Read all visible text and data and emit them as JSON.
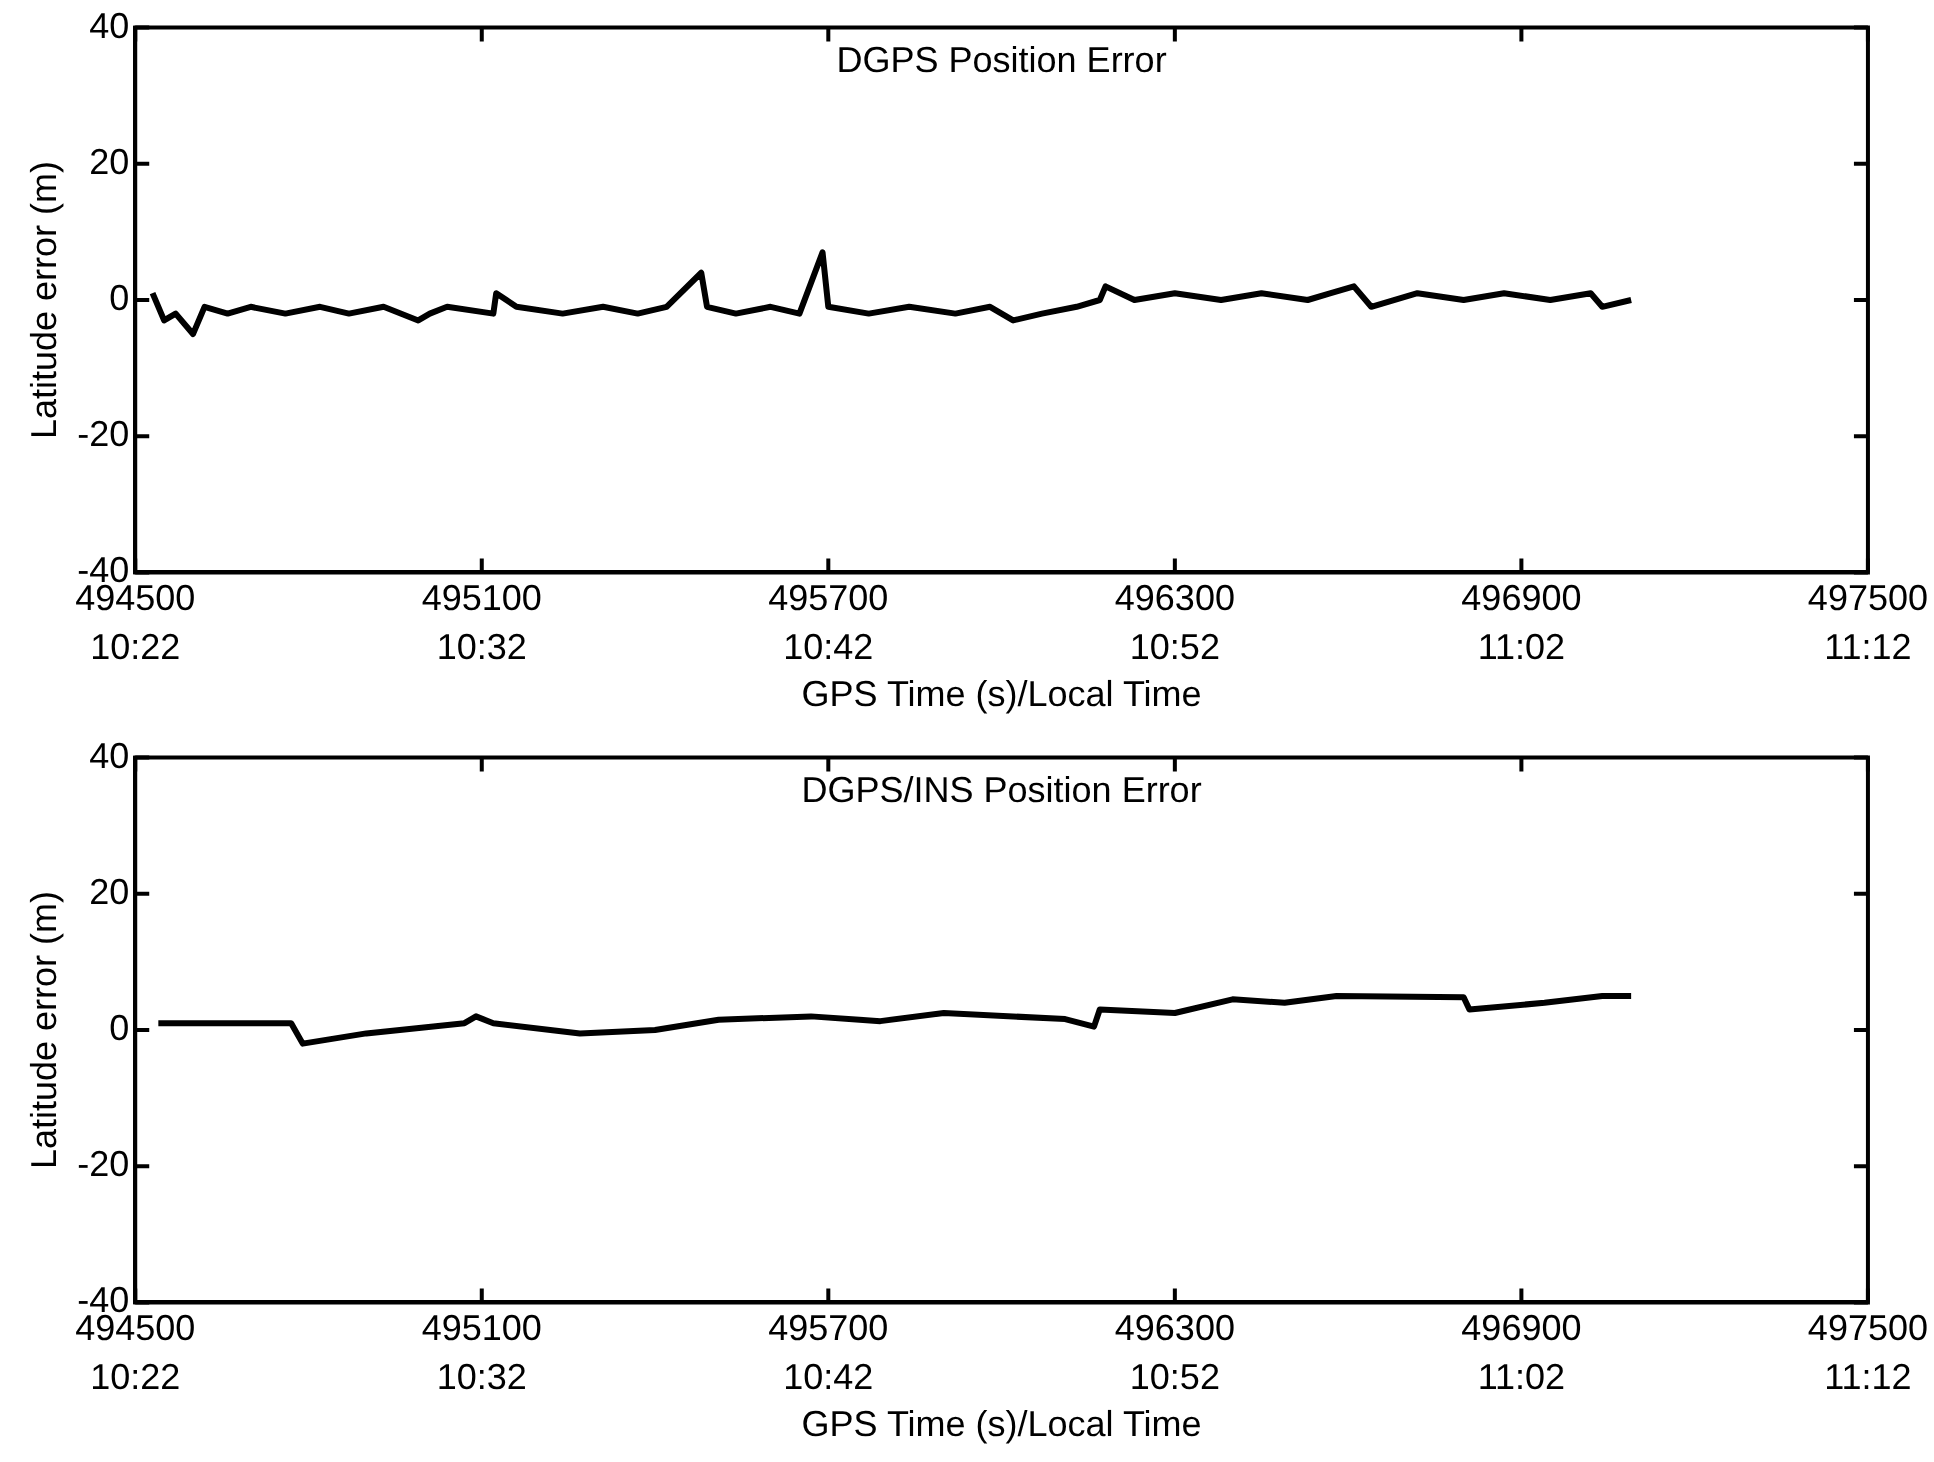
{
  "chart_data": [
    {
      "type": "line",
      "title": "DGPS Position Error",
      "xlabel": "GPS Time (s)/Local Time",
      "ylabel": "Latitude error (m)",
      "xlim": [
        494500,
        497500
      ],
      "ylim": [
        -40,
        40
      ],
      "yticks": [
        -40,
        -20,
        0,
        20,
        40
      ],
      "xticks": [
        494500,
        495100,
        495700,
        496300,
        496900,
        497500
      ],
      "x2lim": [
        10.36667,
        11.2
      ],
      "x2ticks": [
        {
          "value": 10.36667,
          "label": "10:22"
        },
        {
          "value": 10.53333,
          "label": "10:32"
        },
        {
          "value": 10.7,
          "label": "10:42"
        },
        {
          "value": 10.86667,
          "label": "10:52"
        },
        {
          "value": 11.03333,
          "label": "11:02"
        },
        {
          "value": 11.2,
          "label": "11:12"
        }
      ],
      "grid": false,
      "legend": false,
      "marker": "none",
      "line_style": "solid",
      "series": [
        {
          "color": "#000000",
          "x": [
            494530,
            494550,
            494570,
            494600,
            494620,
            494660,
            494700,
            494760,
            494820,
            494870,
            494930,
            494990,
            495010,
            495040,
            495120,
            495125,
            495160,
            495240,
            495310,
            495370,
            495420,
            495480,
            495490,
            495540,
            495600,
            495650,
            495690,
            495700,
            495770,
            495840,
            495920,
            495980,
            496020,
            496070,
            496130,
            496170,
            496180,
            496230,
            496300,
            496380,
            496450,
            496530,
            496570,
            496610,
            496640,
            496720,
            496800,
            496870,
            496950,
            497020,
            497040,
            497090
          ],
          "values": [
            1,
            -3,
            -2,
            -5,
            -1,
            -2,
            -1,
            -2,
            -1,
            -2,
            -1,
            -3,
            -2,
            -1,
            -2,
            1,
            -1,
            -2,
            -1,
            -2,
            -1,
            4,
            -1,
            -2,
            -1,
            -2,
            7,
            -1,
            -2,
            -1,
            -2,
            -1,
            -3,
            -2,
            -1,
            0,
            2,
            0,
            1,
            0,
            1,
            0,
            1,
            2,
            -1,
            1,
            0,
            1,
            0,
            1,
            -1,
            0
          ]
        }
      ]
    },
    {
      "type": "line",
      "title": "DGPS/INS Position Error",
      "xlabel": "GPS Time (s)/Local Time",
      "ylabel": "Latitude error (m)",
      "xlim": [
        494500,
        497500
      ],
      "ylim": [
        -40,
        40
      ],
      "yticks": [
        -40,
        -20,
        0,
        20,
        40
      ],
      "xticks": [
        494500,
        495100,
        495700,
        496300,
        496900,
        497500
      ],
      "x2lim": [
        10.36667,
        11.2
      ],
      "x2ticks": [
        {
          "value": 10.36667,
          "label": "10:22"
        },
        {
          "value": 10.53333,
          "label": "10:32"
        },
        {
          "value": 10.7,
          "label": "10:42"
        },
        {
          "value": 10.86667,
          "label": "10:52"
        },
        {
          "value": 11.03333,
          "label": "11:02"
        },
        {
          "value": 11.2,
          "label": "11:12"
        }
      ],
      "grid": false,
      "legend": false,
      "marker": "none",
      "line_style": "solid",
      "series": [
        {
          "color": "#000000",
          "x": [
            494540,
            494770,
            494790,
            494900,
            495070,
            495090,
            495120,
            495270,
            495400,
            495510,
            495670,
            495790,
            495900,
            496110,
            496160,
            496170,
            496300,
            496400,
            496490,
            496580,
            496800,
            496810,
            496940,
            497040,
            497090
          ],
          "values": [
            1,
            1,
            -2,
            -0.5,
            1,
            2,
            1,
            -0.5,
            0,
            1.5,
            2,
            1.3,
            2.5,
            1.6,
            0.5,
            3,
            2.5,
            4.5,
            4,
            5,
            4.8,
            3,
            4,
            5,
            5
          ]
        }
      ]
    }
  ]
}
